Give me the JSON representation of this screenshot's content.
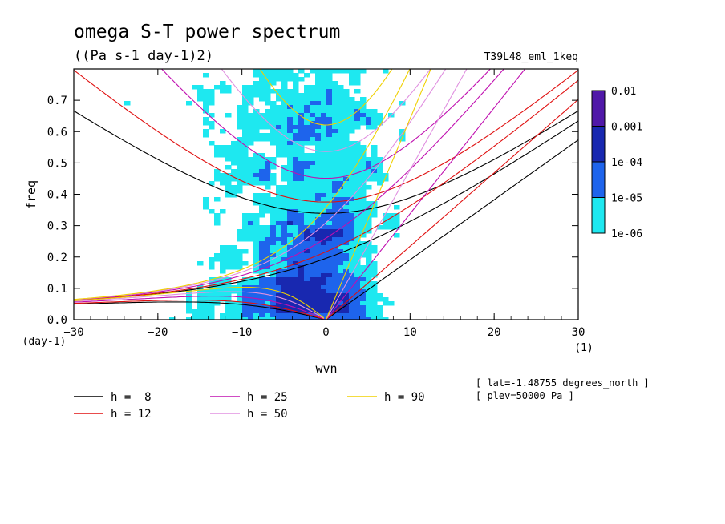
{
  "chart_data": {
    "type": "heatmap",
    "title": "omega S-T power spectrum",
    "subtitle": "((Pa s-1 day-1)2)",
    "run_label": "T39L48_eml_1keq",
    "xlabel": "wvn",
    "xunit": "(1)",
    "ylabel": "freq",
    "yunit": "(day-1)",
    "xlim": [
      -30,
      30
    ],
    "ylim": [
      0,
      0.8
    ],
    "xticks": [
      -30,
      -20,
      -10,
      0,
      10,
      20,
      30
    ],
    "xtick_labels": [
      "−30",
      "−20",
      "−10",
      "0",
      "10",
      "20",
      "30"
    ],
    "yticks": [
      0,
      0.1,
      0.2,
      0.3,
      0.4,
      0.5,
      0.6,
      0.7
    ],
    "ytick_labels": [
      "0.0",
      "0.1",
      "0.2",
      "0.3",
      "0.4",
      "0.5",
      "0.6",
      "0.7"
    ],
    "color_scale": {
      "type": "log",
      "levels": [
        "0.01",
        "0.001",
        "1e-04",
        "1e-05",
        "1e-06"
      ],
      "colors": [
        "#5018a8",
        "#1828b0",
        "#1e64ec",
        "#1ee8f0"
      ]
    },
    "dispersion_curves": [
      {
        "label": "h =  8",
        "color": "#000000"
      },
      {
        "label": "h = 12",
        "color": "#e01010"
      },
      {
        "label": "h = 25",
        "color": "#c010b0"
      },
      {
        "label": "h = 50",
        "color": "#e090e0"
      },
      {
        "label": "h = 90",
        "color": "#f0d000"
      }
    ],
    "annotations": [
      "[ lat=-1.48755 degrees_north ]",
      "[ plev=50000 Pa ]"
    ],
    "grid": false,
    "legend_position": "bottom"
  }
}
